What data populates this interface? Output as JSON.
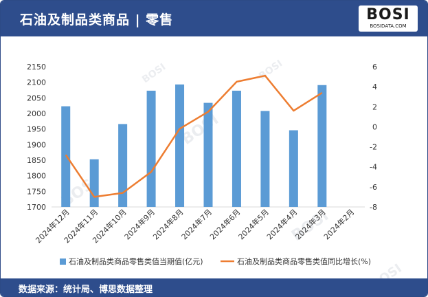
{
  "header": {
    "title": "石油及制品类商品 | 零售"
  },
  "logo": {
    "text": "BOSI",
    "subtext": "BOSIDATA.COM"
  },
  "footer": {
    "source": "数据来源：统计局、博思数据整理"
  },
  "colors": {
    "header_bg": "#2e4d8c",
    "bar": "#5b9bd5",
    "line": "#ed7d31"
  },
  "chart_data": {
    "type": "bar",
    "categories": [
      "2024年12月",
      "2024年11月",
      "2024年10月",
      "2024年9月",
      "2024年8月",
      "2024年7月",
      "2024年6月",
      "2024年5月",
      "2024年4月",
      "2024年3月",
      "2024年2月"
    ],
    "series": [
      {
        "name": "石油及制品类商品零售类值当期值(亿元)",
        "type": "bar",
        "axis": "left",
        "values": [
          2023,
          1853,
          1966,
          2073,
          2093,
          2034,
          2073,
          2008,
          1946,
          2091,
          null
        ]
      },
      {
        "name": "石油及制品类商品零售类值同比增长(%)",
        "type": "line",
        "axis": "right",
        "values": [
          -2.8,
          -7.0,
          -6.6,
          -4.5,
          -0.2,
          1.5,
          4.5,
          5.1,
          1.6,
          3.4,
          null
        ]
      }
    ],
    "y_left": {
      "ticks": [
        1700,
        1750,
        1800,
        1850,
        1900,
        1950,
        2000,
        2050,
        2100,
        2150
      ],
      "ylim": [
        1700,
        2150
      ]
    },
    "y_right": {
      "ticks": [
        -8,
        -6,
        -4,
        -2,
        0,
        2,
        4,
        6
      ],
      "ylim": [
        -8,
        6
      ]
    },
    "legend_position": "bottom",
    "grid": false
  }
}
